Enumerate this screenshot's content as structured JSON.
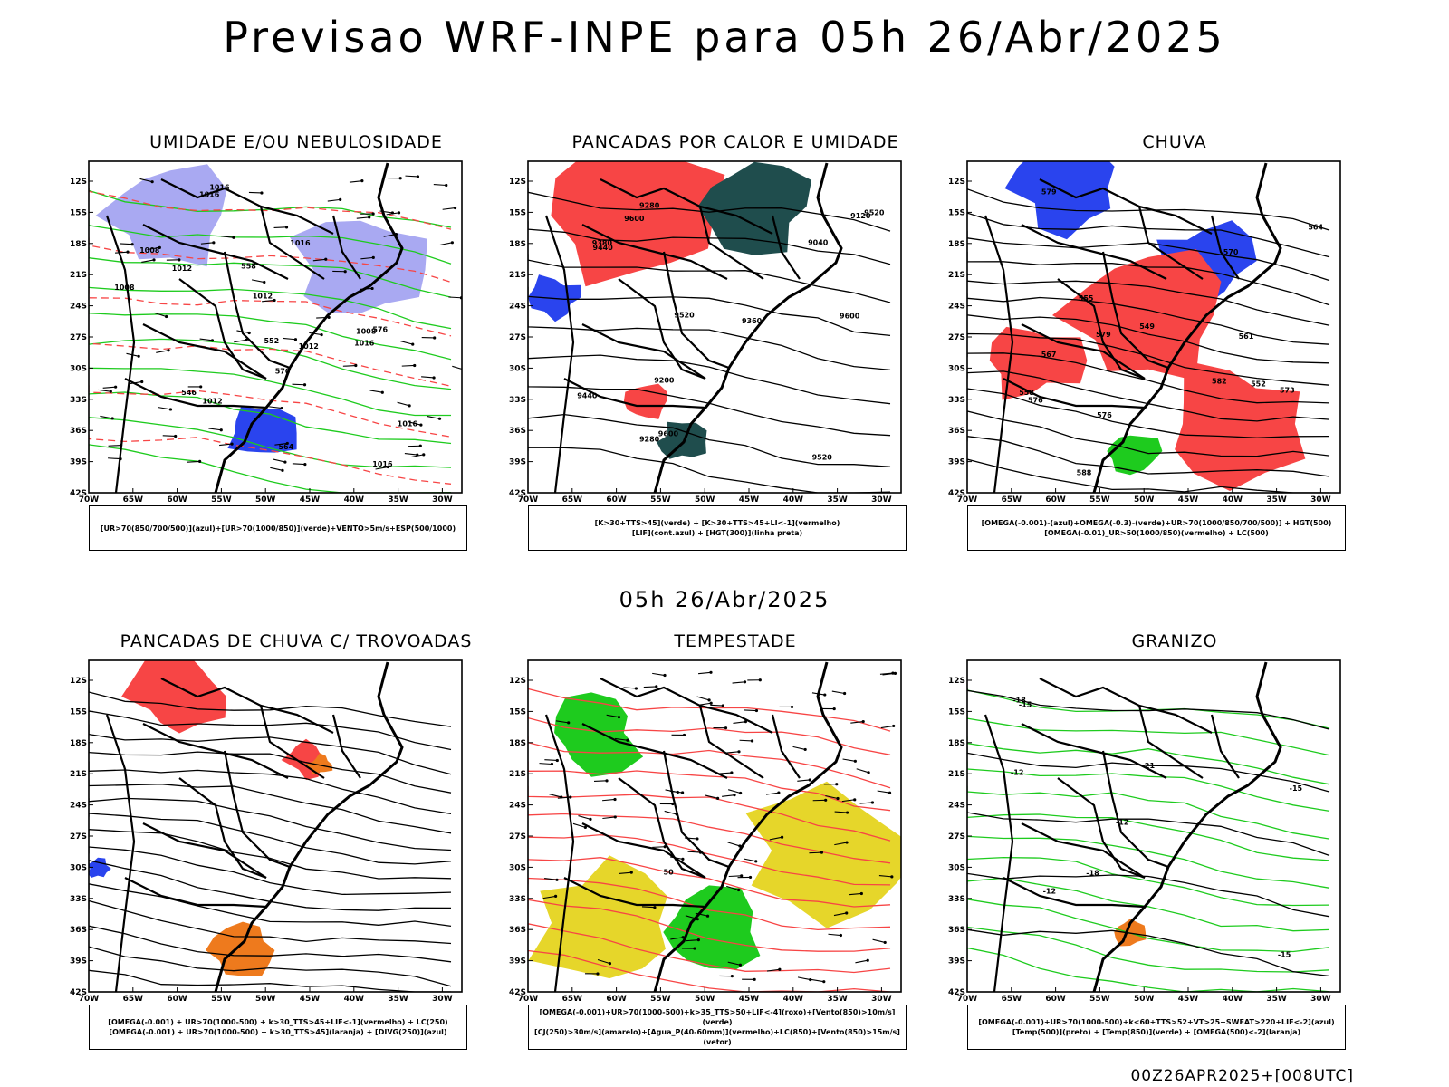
{
  "title": "Previsao WRF-INPE  para 05h 26/Abr/2025",
  "mid_label": "05h 26/Abr/2025",
  "footer": "00Z26APR2025+[008UTC]",
  "lat_ticks": [
    "12S",
    "15S",
    "18S",
    "21S",
    "24S",
    "27S",
    "30S",
    "33S",
    "36S",
    "39S",
    "42S"
  ],
  "lon_ticks": [
    "70W",
    "65W",
    "60W",
    "55W",
    "50W",
    "45W",
    "40W",
    "35W",
    "30W"
  ],
  "colors": {
    "red": "#f74545",
    "blue": "#2a44ee",
    "green": "#1ecb1e",
    "lightgreen": "#33cc33",
    "lavender": "#a9a9f2",
    "darkteal": "#1f4d4d",
    "yellow": "#e6d62a",
    "orange": "#ee7a1d",
    "black": "#000000"
  },
  "panels": [
    {
      "title": "UMIDADE E/OU NEBULOSIDADE",
      "legend": [
        "[UR>70(850/700/500)](azul)+[UR>70(1000/850)](verde)+VENTO>5m/s+ESP(500/1000)"
      ],
      "labels": [
        "1012",
        "1008",
        "1012",
        "1016",
        "1012",
        "1016",
        "1008",
        "1012",
        "1016",
        "1016",
        "1016",
        "1008",
        "1016",
        "576",
        "570",
        "564",
        "558",
        "552",
        "546"
      ]
    },
    {
      "title": "PANCADAS POR CALOR E UMIDADE",
      "legend": [
        "[K>30+TTS>45](verde) + [K>30+TTS>45+LI<-1](vermelho)",
        "[LIF](cont.azul) + [HGT(300)](linha preta)"
      ],
      "labels": [
        "9600",
        "9600",
        "9520",
        "9520",
        "9440",
        "9440",
        "9360",
        "9280",
        "9200",
        "9120",
        "9040",
        "9280",
        "9380",
        "9520",
        "9600"
      ]
    },
    {
      "title": "CHUVA",
      "legend": [
        "[OMEGA(-0.001)-(azul)+OMEGA(-0.3)-(verde)+UR>70(1000/850/700/500)] + HGT(500)",
        "[OMEGA(-0.01)_UR>50(1000/850)(vermelho) + LC(500)"
      ],
      "labels": [
        "588",
        "582",
        "579",
        "576",
        "573",
        "570",
        "567",
        "564",
        "561",
        "558",
        "555",
        "552",
        "549",
        "576",
        "579"
      ]
    },
    {
      "title": "PANCADAS DE CHUVA C/ TROVOADAS",
      "legend": [
        "[OMEGA(-0.001) + UR>70(1000-500) + k>30_TTS>45+LIF<-1](vermelho) + LC(250)",
        "[OMEGA(-0.001) + UR>70(1000-500) + k>30_TTS>45](laranja) + [DIVG(250)](azul)"
      ],
      "labels": []
    },
    {
      "title": "TEMPESTADE",
      "legend": [
        "[OMEGA(-0.001)+UR>70(1000-500)+k>35_TTS>50+LIF<-4](roxo)+[Vento(850)>10m/s](verde)",
        "[CJ(250)>30m/s](amarelo)+[Agua_P(40-60mm)](vermelho)+LC(850)+[Vento(850)>15m/s](vetor)"
      ],
      "labels": [
        "50"
      ]
    },
    {
      "title": "GRANIZO",
      "legend": [
        "[OMEGA(-0.001)+UR>70(1000-500)+k<60+TTS>52+VT>25+SWEAT>220+LIF<-2](azul)",
        "[Temp(500)](preto) + [Temp(850)](verde) + [OMEGA(500)<-2](laranja)"
      ],
      "labels": [
        "-12",
        "-12",
        "-12",
        "-15",
        "-18",
        "-21",
        "-15",
        "-18",
        "-15"
      ]
    }
  ]
}
